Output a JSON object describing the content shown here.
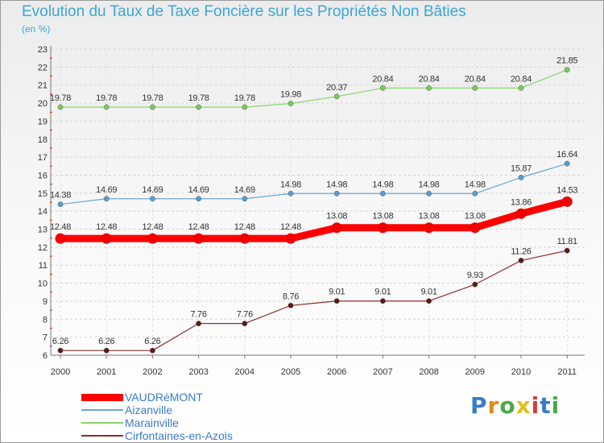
{
  "title": "Evolution du Taux de Taxe Foncière sur les Propriétés Non Bâties",
  "subtitle": "(en %)",
  "logo": {
    "text": "Proxiti",
    "colors": [
      "#3a7bc8",
      "#e08a1c",
      "#4aa84a",
      "#e0c21c",
      "#d83a3a",
      "#3a7bc8",
      "#4aa84a"
    ]
  },
  "chart_data": {
    "type": "line",
    "title": "Evolution du Taux de Taxe Foncière sur les Propriétés Non Bâties",
    "ylabel": "(en %)",
    "xlabel": "",
    "ylim": [
      6,
      23
    ],
    "yticks": [
      "6",
      "7",
      "8",
      "9",
      "10",
      "11",
      "12",
      "13",
      "14",
      "15",
      "16",
      "17",
      "18",
      "19",
      "20",
      "21",
      "22",
      "23"
    ],
    "categories": [
      "2000",
      "2001",
      "2002",
      "2003",
      "2004",
      "2005",
      "2006",
      "2007",
      "2008",
      "2009",
      "2010",
      "2011"
    ],
    "series": [
      {
        "name": "Marainville",
        "color": "#88d66a",
        "dot": "#7cc85a",
        "width": 1.2,
        "values": [
          19.78,
          19.78,
          19.78,
          19.78,
          19.78,
          19.98,
          20.37,
          20.84,
          20.84,
          20.84,
          20.84,
          21.85
        ],
        "labels": [
          "19.78",
          "19.78",
          "19.78",
          "19.78",
          "19.78",
          "19.98",
          "20.37",
          "20.84",
          "20.84",
          "20.84",
          "20.84",
          "21.85"
        ]
      },
      {
        "name": "Aizanville",
        "color": "#6aa6d6",
        "dot": "#5b9ad0",
        "width": 1.2,
        "values": [
          14.38,
          14.69,
          14.69,
          14.69,
          14.69,
          14.98,
          14.98,
          14.98,
          14.98,
          14.98,
          15.87,
          16.64
        ],
        "labels": [
          "14.38",
          "14.69",
          "14.69",
          "14.69",
          "14.69",
          "14.98",
          "14.98",
          "14.98",
          "14.98",
          "14.98",
          "15.87",
          "16.64"
        ]
      },
      {
        "name": "VAUDRéMONT",
        "color": "#ff0000",
        "dot": "#ee0000",
        "width": 9,
        "values": [
          12.48,
          12.48,
          12.48,
          12.48,
          12.48,
          12.48,
          13.08,
          13.08,
          13.08,
          13.08,
          13.86,
          14.53
        ],
        "labels": [
          "12.48",
          "12.48",
          "12.48",
          "12.48",
          "12.48",
          "12.48",
          "13.08",
          "13.08",
          "13.08",
          "13.08",
          "13.86",
          "14.53"
        ]
      },
      {
        "name": "Cirfontaines-en-Azois",
        "color": "#8a3030",
        "dot": "#5a1a1a",
        "width": 1.2,
        "values": [
          6.26,
          6.26,
          6.26,
          7.76,
          7.76,
          8.76,
          9.01,
          9.01,
          9.01,
          9.93,
          11.26,
          11.81
        ],
        "labels": [
          "6.26",
          "6.26",
          "6.26",
          "7.76",
          "7.76",
          "8.76",
          "9.01",
          "9.01",
          "9.01",
          "9.93",
          "11.26",
          "11.81"
        ]
      }
    ],
    "legend": [
      {
        "name": "VAUDRéMONT",
        "color": "#ff0000",
        "width": 9
      },
      {
        "name": "Aizanville",
        "color": "#6aa6d6",
        "width": 1.5
      },
      {
        "name": "Marainville",
        "color": "#88d66a",
        "width": 1.5
      },
      {
        "name": "Cirfontaines-en-Azois",
        "color": "#8a3030",
        "width": 1.5
      }
    ]
  }
}
